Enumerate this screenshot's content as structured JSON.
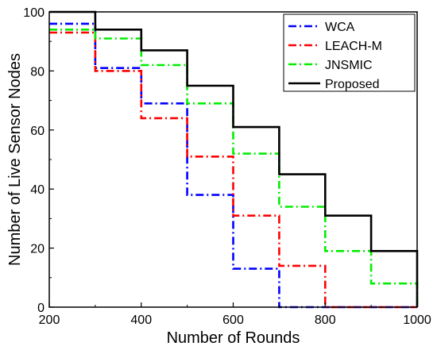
{
  "chart_data": {
    "type": "line",
    "title": "",
    "xlabel": "Number of Rounds",
    "ylabel": "Number of Live Sensor Nodes",
    "xlim": [
      200,
      1000
    ],
    "ylim": [
      0,
      100
    ],
    "xticks": [
      "200",
      "400",
      "600",
      "800",
      "1000"
    ],
    "yticks": [
      "0",
      "20",
      "40",
      "60",
      "80",
      "100"
    ],
    "grid": false,
    "legend_position": "top-right",
    "x": [
      200,
      300,
      400,
      500,
      600,
      700,
      800,
      900,
      1000
    ],
    "series": [
      {
        "name": "WCA",
        "color": "#0000ff",
        "dash": "dash-dot",
        "values": [
          96,
          81,
          69,
          38,
          13,
          0,
          0,
          0,
          0
        ]
      },
      {
        "name": "LEACH-M",
        "color": "#ff0000",
        "dash": "dash-dot",
        "values": [
          93,
          80,
          64,
          51,
          31,
          14,
          0,
          0,
          0
        ]
      },
      {
        "name": "JNSMIC",
        "color": "#00ee00",
        "dash": "dash-dot",
        "values": [
          94,
          91,
          82,
          69,
          52,
          34,
          19,
          8,
          0
        ]
      },
      {
        "name": "Proposed",
        "color": "#000000",
        "dash": "solid",
        "values": [
          100,
          94,
          87,
          75,
          61,
          45,
          31,
          19,
          0
        ]
      }
    ]
  }
}
